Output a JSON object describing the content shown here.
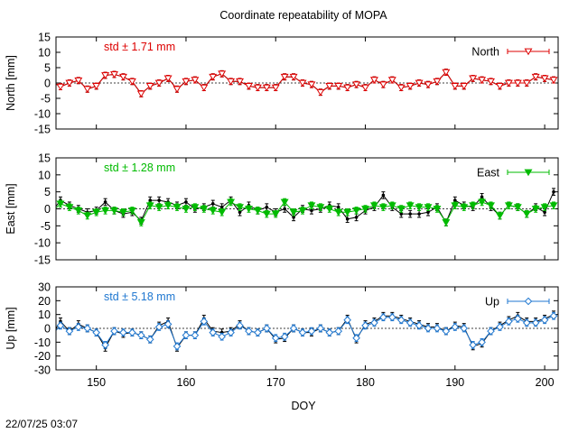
{
  "title": "Coordinate repeatability of MOPA",
  "timestamp": "22/07/25 03:07",
  "colors": {
    "north": "#dd0000",
    "east": "#00bb00",
    "up": "#1f77d0",
    "black": "#000000"
  },
  "chart_data": {
    "type": "line",
    "xlabel": "DOY",
    "xlim": [
      145.5,
      201.5
    ],
    "xticks": [
      150,
      160,
      170,
      180,
      190,
      200
    ],
    "grid": false,
    "panels": [
      {
        "key": "north",
        "ylabel": "North [mm]",
        "ylim": [
          -15,
          15
        ],
        "yticks": [
          -15,
          -10,
          -5,
          0,
          5,
          10,
          15
        ],
        "std_label": "std ± 1.71 mm",
        "legend": "North",
        "legend_position": "top-right",
        "marker": "triangle-down-open",
        "x": [
          145,
          146,
          147,
          148,
          149,
          150,
          151,
          152,
          153,
          154,
          155,
          156,
          157,
          158,
          159,
          160,
          161,
          162,
          163,
          164,
          165,
          166,
          167,
          168,
          169,
          170,
          171,
          172,
          173,
          174,
          175,
          176,
          177,
          178,
          179,
          180,
          181,
          182,
          183,
          184,
          185,
          186,
          187,
          188,
          189,
          190,
          191,
          192,
          193,
          194,
          195,
          196,
          197,
          198,
          199,
          200,
          201
        ],
        "y": [
          0.5,
          -1.2,
          0.0,
          0.8,
          -2.0,
          -1.0,
          2.5,
          2.8,
          2.0,
          0.5,
          -3.5,
          -1.0,
          0.0,
          1.5,
          -2.0,
          0.5,
          1.0,
          -1.5,
          2.0,
          3.0,
          0.5,
          0.5,
          -1.0,
          -1.5,
          -1.5,
          -1.5,
          2.0,
          2.0,
          0.0,
          -0.5,
          -3.0,
          -1.0,
          -1.0,
          -1.5,
          -0.5,
          -1.5,
          1.0,
          -0.5,
          1.0,
          -1.5,
          -1.0,
          0.0,
          -0.5,
          0.5,
          3.5,
          -1.0,
          -1.0,
          1.5,
          1.0,
          0.5,
          -1.0,
          0.0,
          0.0,
          0.0,
          2.0,
          1.5,
          1.0
        ],
        "yerr": 1.0,
        "black_y": [
          0.5,
          -1.2,
          0.0,
          0.8,
          -2.0,
          -1.0,
          2.5,
          2.8,
          2.0,
          0.5,
          -3.5,
          -1.0,
          0.0,
          1.5,
          -2.0,
          0.5,
          1.0,
          -1.5,
          2.0,
          3.0,
          0.5,
          0.5,
          -1.0,
          -1.5,
          -1.5,
          -1.5,
          2.0,
          2.0,
          0.0,
          -0.5,
          -3.0,
          -1.0,
          -1.0,
          -1.5,
          -0.5,
          -1.5,
          1.0,
          -0.5,
          1.0,
          -1.5,
          -1.0,
          0.0,
          -0.5,
          0.5,
          3.5,
          -1.0,
          -1.0,
          1.5,
          1.0,
          0.5,
          -1.0,
          0.0,
          0.0,
          0.0,
          2.0,
          1.5,
          1.0
        ]
      },
      {
        "key": "east",
        "ylabel": "East [mm]",
        "ylim": [
          -15,
          15
        ],
        "yticks": [
          -15,
          -10,
          -5,
          0,
          5,
          10,
          15
        ],
        "std_label": "std ± 1.28 mm",
        "legend": "East",
        "legend_position": "top-right",
        "marker": "triangle-down-filled",
        "x": [
          145,
          146,
          147,
          148,
          149,
          150,
          151,
          152,
          153,
          154,
          155,
          156,
          157,
          158,
          159,
          160,
          161,
          162,
          163,
          164,
          165,
          166,
          167,
          168,
          169,
          170,
          171,
          172,
          173,
          174,
          175,
          176,
          177,
          178,
          179,
          180,
          181,
          182,
          183,
          184,
          185,
          186,
          187,
          188,
          189,
          190,
          191,
          192,
          193,
          194,
          195,
          196,
          197,
          198,
          199,
          200,
          201
        ],
        "y": [
          -1.0,
          1.5,
          0.5,
          -0.5,
          -2.0,
          -1.0,
          -0.5,
          -0.5,
          -1.0,
          -0.5,
          -4.0,
          1.0,
          0.5,
          1.0,
          0.5,
          0.0,
          0.5,
          0.0,
          -0.5,
          -1.0,
          2.0,
          0.5,
          0.0,
          -0.5,
          -1.5,
          -1.5,
          2.0,
          -1.0,
          -0.5,
          1.0,
          0.5,
          0.0,
          -1.0,
          -1.0,
          -0.5,
          0.0,
          1.0,
          0.5,
          1.0,
          0.0,
          1.0,
          0.5,
          0.5,
          0.0,
          -4.0,
          1.0,
          0.5,
          1.0,
          2.0,
          1.0,
          -2.0,
          1.0,
          0.5,
          -1.5,
          0.0,
          0.5,
          1.0
        ],
        "yerr": 1.0,
        "black_y": [
          -1.0,
          2.5,
          1.0,
          0.0,
          -1.0,
          -0.5,
          2.0,
          -0.5,
          -1.5,
          -1.0,
          -3.5,
          2.5,
          2.5,
          2.0,
          1.0,
          2.0,
          0.0,
          0.5,
          1.5,
          0.5,
          2.5,
          -1.0,
          1.0,
          -0.5,
          0.5,
          -1.0,
          0.0,
          -2.5,
          0.0,
          -0.5,
          0.0,
          1.0,
          0.5,
          -3.0,
          -2.5,
          -0.5,
          0.5,
          4.0,
          0.5,
          -1.5,
          -1.5,
          -1.5,
          -1.0,
          0.5,
          -4.0,
          2.5,
          1.0,
          0.5,
          3.5,
          0.5,
          -2.0,
          1.0,
          0.5,
          -1.5,
          0.5,
          -1.0,
          5.0
        ]
      },
      {
        "key": "up",
        "ylabel": "Up [mm]",
        "ylim": [
          -30,
          30
        ],
        "yticks": [
          -30,
          -20,
          -10,
          0,
          10,
          20,
          30
        ],
        "std_label": "std ± 5.18 mm",
        "legend": "Up",
        "legend_position": "top-right",
        "marker": "diamond-open",
        "x": [
          145,
          146,
          147,
          148,
          149,
          150,
          151,
          152,
          153,
          154,
          155,
          156,
          157,
          158,
          159,
          160,
          161,
          162,
          163,
          164,
          165,
          166,
          167,
          168,
          169,
          170,
          171,
          172,
          173,
          174,
          175,
          176,
          177,
          178,
          179,
          180,
          181,
          182,
          183,
          184,
          185,
          186,
          187,
          188,
          189,
          190,
          191,
          192,
          193,
          194,
          195,
          196,
          197,
          198,
          199,
          200,
          201
        ],
        "y": [
          -5,
          2,
          -2,
          1,
          0,
          -3,
          -12,
          -2,
          -3,
          -3,
          -5,
          -8,
          1,
          3,
          -13,
          -5,
          -5,
          5,
          -3,
          -6,
          -3,
          2,
          -2,
          -3,
          0,
          -7,
          -6,
          0,
          -3,
          -2,
          0,
          -3,
          -2,
          6,
          -7,
          2,
          4,
          8,
          8,
          6,
          4,
          2,
          0,
          0,
          -2,
          1,
          0,
          -12,
          -10,
          -2,
          1,
          5,
          7,
          4,
          4,
          6,
          9
        ],
        "yerr": 2.5,
        "black_y": [
          -5,
          5,
          -2,
          3,
          0,
          -3,
          -14,
          -2,
          -4,
          -3,
          -5,
          -8,
          2,
          5,
          -14,
          -5,
          -5,
          7,
          -2,
          -3,
          -2,
          3,
          -2,
          -3,
          0,
          -8,
          -7,
          0,
          -3,
          -3,
          0,
          -3,
          -2,
          7,
          -8,
          3,
          5,
          9,
          9,
          7,
          5,
          3,
          1,
          1,
          -2,
          2,
          1,
          -13,
          -11,
          -2,
          2,
          6,
          9,
          5,
          5,
          7,
          10
        ]
      }
    ]
  }
}
